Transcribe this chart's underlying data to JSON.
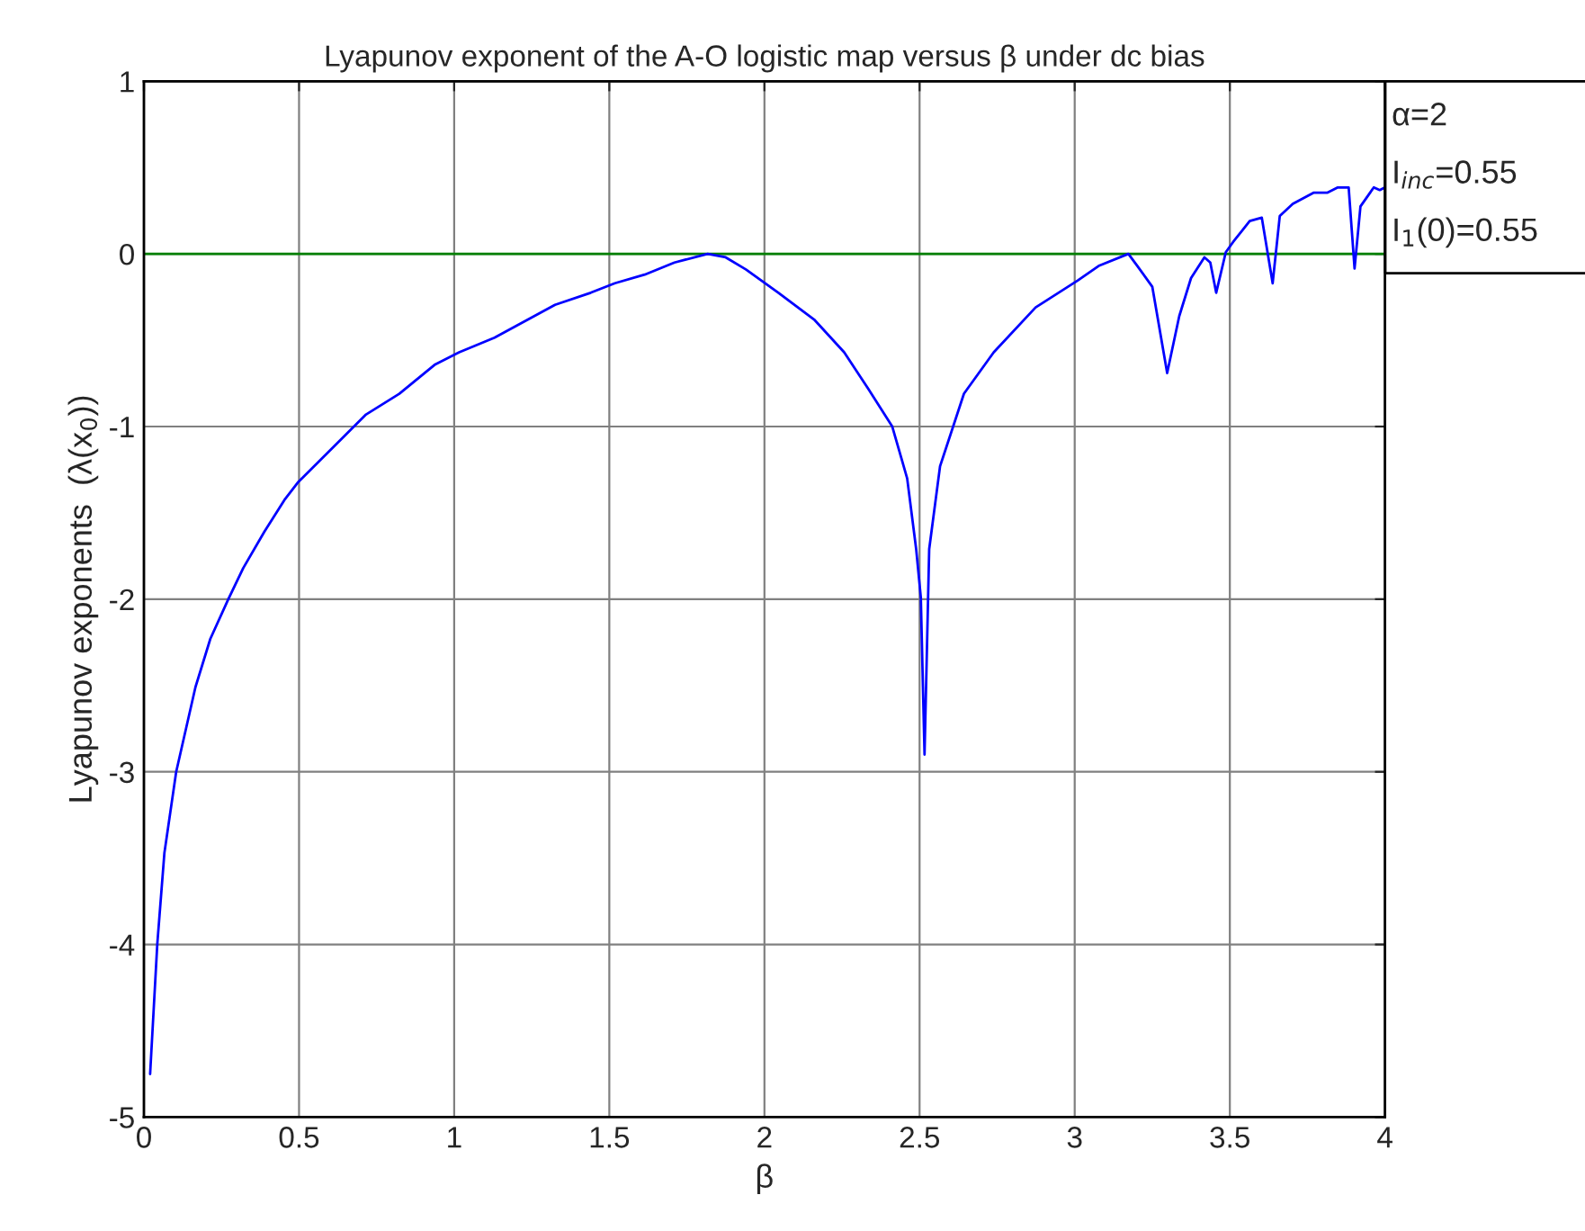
{
  "chart_data": {
    "type": "line",
    "title": "Lyapunov exponent of the A-O logistic map versus β under dc bias",
    "xlabel": "β",
    "ylabel": "Lyapunov exponents  (λ(x$_{0}$))",
    "xlim": [
      0,
      4
    ],
    "xticks": [
      0,
      0.5,
      1,
      1.5,
      2,
      2.5,
      3,
      3.5,
      4
    ],
    "ylim": [
      -5,
      1
    ],
    "yticks": [
      -5,
      -4,
      -3,
      -2,
      -1,
      0,
      1
    ],
    "grid": true,
    "ref_lines": [
      {
        "axis": "y",
        "value": 0,
        "color": "#008000"
      }
    ],
    "annotations": [
      "α=2",
      "I$_{inc}$=0.55",
      "I$_{1}$(0)=0.55"
    ],
    "series": [
      {
        "color": "#0000ff",
        "x": [
          0.02,
          0.043,
          0.066,
          0.104,
          0.166,
          0.214,
          0.272,
          0.32,
          0.388,
          0.455,
          0.498,
          0.61,
          0.716,
          0.823,
          0.939,
          1.016,
          1.13,
          1.325,
          1.44,
          1.518,
          1.614,
          1.71,
          1.817,
          1.875,
          1.94,
          2.045,
          2.16,
          2.257,
          2.334,
          2.412,
          2.46,
          2.489,
          2.504,
          2.516,
          2.531,
          2.566,
          2.643,
          2.739,
          2.874,
          3.009,
          3.077,
          3.173,
          3.202,
          3.25,
          3.298,
          3.337,
          3.375,
          3.418,
          3.437,
          3.456,
          3.487,
          3.511,
          3.564,
          3.603,
          3.638,
          3.661,
          3.703,
          3.771,
          3.815,
          3.848,
          3.883,
          3.902,
          3.921,
          3.964,
          3.983,
          4.0
        ],
        "values": [
          -4.75,
          -4.0,
          -3.47,
          -3.0,
          -2.51,
          -2.23,
          -2.0,
          -1.82,
          -1.61,
          -1.42,
          -1.32,
          -1.12,
          -0.93,
          -0.81,
          -0.64,
          -0.57,
          -0.485,
          -0.295,
          -0.225,
          -0.17,
          -0.12,
          -0.05,
          0,
          -0.02,
          -0.09,
          -0.225,
          -0.38,
          -0.57,
          -0.78,
          -1.0,
          -1.3,
          -1.71,
          -1.99,
          -2.9,
          -1.71,
          -1.23,
          -0.81,
          -0.57,
          -0.31,
          -0.155,
          -0.07,
          0,
          -0.07,
          -0.19,
          -0.69,
          -0.36,
          -0.14,
          -0.02,
          -0.05,
          -0.225,
          0.01,
          0.07,
          0.19,
          0.21,
          -0.17,
          0.22,
          0.29,
          0.355,
          0.355,
          0.385,
          0.385,
          -0.085,
          0.275,
          0.385,
          0.37,
          0.385
        ]
      }
    ]
  }
}
